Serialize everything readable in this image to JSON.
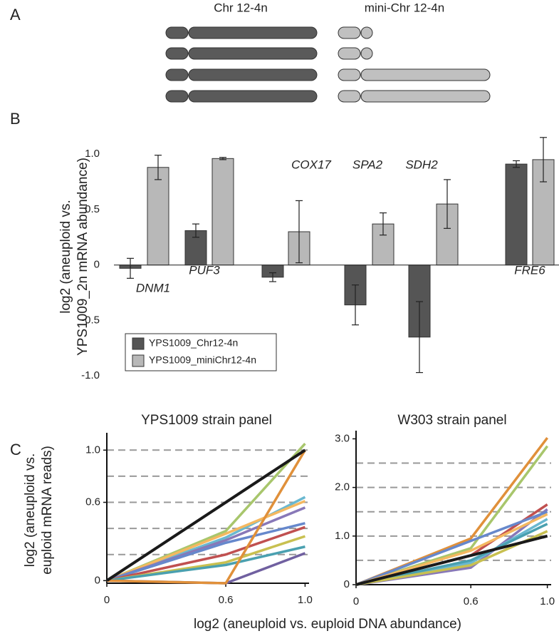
{
  "panel_labels": [
    "A",
    "B",
    "C"
  ],
  "diagram": {
    "labels": [
      "Chr 12-4n",
      "mini-Chr 12-4n"
    ]
  },
  "shared_xlabel": "log2 (aneuploid vs. euploid DNA abundance)",
  "chart_data": [
    {
      "type": "bar",
      "ylabel": [
        "log2 (aneuploid vs.",
        "YPS1009_2n mRNA abundance)"
      ],
      "categories": [
        "DNM1",
        "PUF3",
        "COX17",
        "SPA2",
        "SDH2",
        "FRE6"
      ],
      "series": [
        {
          "name": "YPS1009_Chr12-4n",
          "color": "#555555",
          "values": [
            -0.03,
            0.31,
            -0.11,
            -0.36,
            -0.65,
            0.91
          ],
          "errors": [
            0.09,
            0.06,
            0.04,
            0.18,
            0.32,
            0.03
          ]
        },
        {
          "name": "YPS1009_miniChr12-4n",
          "color": "#b8b8b8",
          "values": [
            0.88,
            0.96,
            0.3,
            0.37,
            0.55,
            0.95
          ],
          "errors": [
            0.11,
            0.01,
            0.28,
            0.1,
            0.22,
            0.2
          ]
        }
      ],
      "ylim": [
        -1.05,
        1.2
      ],
      "yticks": [
        {
          "value": -1.0,
          "label": "-1.0"
        },
        {
          "value": -0.5,
          "label": "-0.5"
        },
        0,
        {
          "value": 0.5,
          "label": "0.5"
        },
        {
          "value": 1.0,
          "label": "1.0"
        }
      ]
    },
    {
      "type": "line",
      "title": "YPS1009 strain panel",
      "ylabel": [
        "log2 (aneuploid vs.",
        "euploid mRNA reads)"
      ],
      "x": [
        0,
        0.6,
        1.0
      ],
      "xlim": [
        0,
        1.02
      ],
      "xticks": [
        0,
        0.6,
        {
          "value": 1.0,
          "label": "1.0"
        }
      ],
      "ylim": [
        -0.02,
        1.1
      ],
      "yticks": [
        0,
        0.6,
        {
          "value": 1.0,
          "label": "1.0"
        }
      ],
      "grid_lines": [
        0.2,
        0.4,
        0.6,
        0.8,
        1.0
      ],
      "series": [
        {
          "color": "#a8c66c",
          "values": [
            0,
            0.38,
            1.05
          ]
        },
        {
          "color": "#6ab8d0",
          "values": [
            0,
            0.33,
            0.64
          ]
        },
        {
          "color": "#f4b860",
          "values": [
            0,
            0.36,
            0.61
          ]
        },
        {
          "color": "#8878b8",
          "values": [
            0,
            0.31,
            0.56
          ]
        },
        {
          "color": "#6688cc",
          "values": [
            0,
            0.29,
            0.44
          ]
        },
        {
          "color": "#c05050",
          "values": [
            0,
            0.2,
            0.41
          ]
        },
        {
          "color": "#c8c050",
          "values": [
            0,
            0.14,
            0.34
          ]
        },
        {
          "color": "#4aa0b0",
          "values": [
            0,
            0.12,
            0.26
          ]
        },
        {
          "color": "#7060a0",
          "values": [
            0,
            -0.02,
            0.21
          ]
        },
        {
          "color": "#e0903a",
          "values": [
            0,
            -0.02,
            1.0
          ]
        },
        {
          "color": "#1a1a1a",
          "values": [
            0,
            0.6,
            1.0
          ]
        }
      ]
    },
    {
      "type": "line",
      "title": "W303 strain panel",
      "x": [
        0,
        0.6,
        1.0
      ],
      "xlim": [
        0,
        1.02
      ],
      "xticks": [
        0,
        0.6,
        {
          "value": 1.0,
          "label": "1.0"
        }
      ],
      "ylim": [
        0,
        3.08
      ],
      "yticks": [
        0,
        {
          "value": 1.0,
          "label": "1.0"
        },
        {
          "value": 2.0,
          "label": "2.0"
        },
        {
          "value": 3.0,
          "label": "3.0"
        }
      ],
      "grid_lines": [
        0.5,
        1.0,
        1.5,
        2.0,
        2.5
      ],
      "series": [
        {
          "color": "#e0903a",
          "values": [
            0,
            0.95,
            3.02
          ]
        },
        {
          "color": "#a8c66c",
          "values": [
            0,
            0.75,
            2.85
          ]
        },
        {
          "color": "#c05050",
          "values": [
            0,
            0.6,
            1.65
          ]
        },
        {
          "color": "#8878b8",
          "values": [
            0,
            0.35,
            1.55
          ]
        },
        {
          "color": "#6688cc",
          "values": [
            0,
            0.9,
            1.5
          ]
        },
        {
          "color": "#f4b860",
          "values": [
            0,
            0.7,
            1.45
          ]
        },
        {
          "color": "#6ab8d0",
          "values": [
            0,
            0.45,
            1.35
          ]
        },
        {
          "color": "#4aa0b0",
          "values": [
            0,
            0.5,
            1.25
          ]
        },
        {
          "color": "#c8c050",
          "values": [
            0,
            0.4,
            1.1
          ]
        },
        {
          "color": "#1a1a1a",
          "values": [
            0,
            0.6,
            1.0
          ]
        }
      ]
    }
  ]
}
